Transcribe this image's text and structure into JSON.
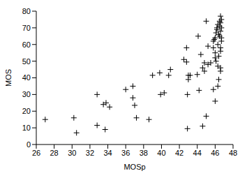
{
  "chart_data": {
    "type": "scatter",
    "x_label": "MOSp",
    "y_label": "MOS",
    "color": "#000000",
    "marker": "plus",
    "grid": false,
    "xlim": [
      26,
      48
    ],
    "xticks": [
      26,
      28,
      30,
      32,
      34,
      36,
      38,
      40,
      42,
      44,
      46,
      48
    ],
    "ylim": [
      0,
      80
    ],
    "yticks": [
      0,
      10,
      20,
      30,
      40,
      50,
      60,
      70,
      80
    ],
    "x": [
      27,
      30.2,
      30.5,
      32.8,
      32.8,
      33.5,
      33.7,
      33.8,
      34.2,
      36,
      36.8,
      36.8,
      37,
      37.2,
      38.6,
      39,
      39.8,
      39.9,
      40.3,
      40.8,
      41,
      42.5,
      42.8,
      42.8,
      43,
      43,
      42.9,
      42.9,
      43.2,
      44,
      44.1,
      44.2,
      44.4,
      44.6,
      44.6,
      44.8,
      44.8,
      45,
      45,
      45.2,
      45.2,
      45.5,
      45.8,
      45.8,
      45.8,
      46,
      46,
      46,
      46,
      46.1,
      46.1,
      46.2,
      46.2,
      46.3,
      46.3,
      46.3,
      46.4,
      46.4,
      46.5,
      46.5,
      46.5,
      46.6,
      46.6,
      46.6,
      46.6,
      46.6,
      46.6,
      46.6,
      46.7,
      46.7,
      46.7,
      46.7,
      46.4,
      45.9,
      46.3
    ],
    "values": [
      15,
      16,
      7,
      30,
      11.5,
      24,
      9,
      25,
      22.5,
      33,
      35,
      28,
      23.5,
      16,
      15,
      41.5,
      43,
      30,
      31,
      41.5,
      45,
      51,
      58,
      49.5,
      41.5,
      39,
      30,
      9.5,
      41.5,
      42,
      65,
      32.5,
      54,
      46,
      11,
      49,
      44,
      17,
      74,
      59,
      48,
      49,
      58,
      33,
      62,
      55,
      52,
      26,
      64,
      67,
      50,
      70,
      69,
      72,
      60,
      35,
      66,
      39,
      74,
      71,
      65,
      77,
      73,
      68,
      58,
      56,
      46,
      44,
      75,
      70,
      64,
      62,
      53,
      63,
      47
    ]
  }
}
